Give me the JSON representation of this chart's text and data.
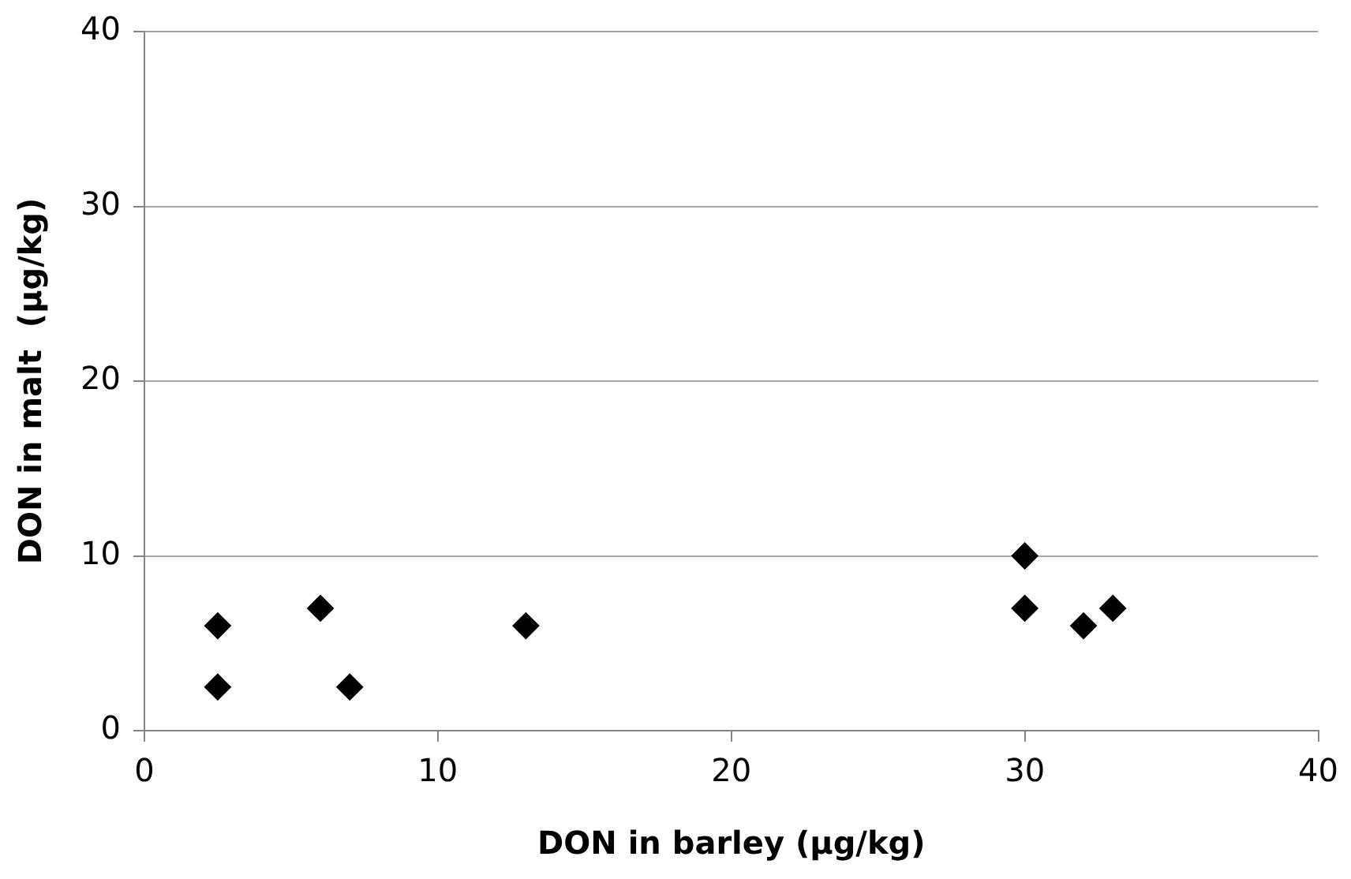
{
  "chart_data": {
    "type": "scatter",
    "xlabel": "DON in barley (µg/kg)",
    "ylabel": "DON in malt  (µg/kg)",
    "x": [
      2.5,
      2.5,
      6,
      7,
      13,
      30,
      30,
      32,
      33
    ],
    "values": [
      2.5,
      6,
      7,
      2.5,
      6,
      10,
      7,
      6,
      7
    ],
    "color": "#000000",
    "marker": "diamond",
    "xlim": [
      0,
      40
    ],
    "xticks": [
      0,
      10,
      20,
      30,
      40
    ],
    "ylim": [
      0,
      40
    ],
    "yticks": [
      0,
      10,
      20,
      30,
      40
    ],
    "grid": "y",
    "legend": false
  }
}
